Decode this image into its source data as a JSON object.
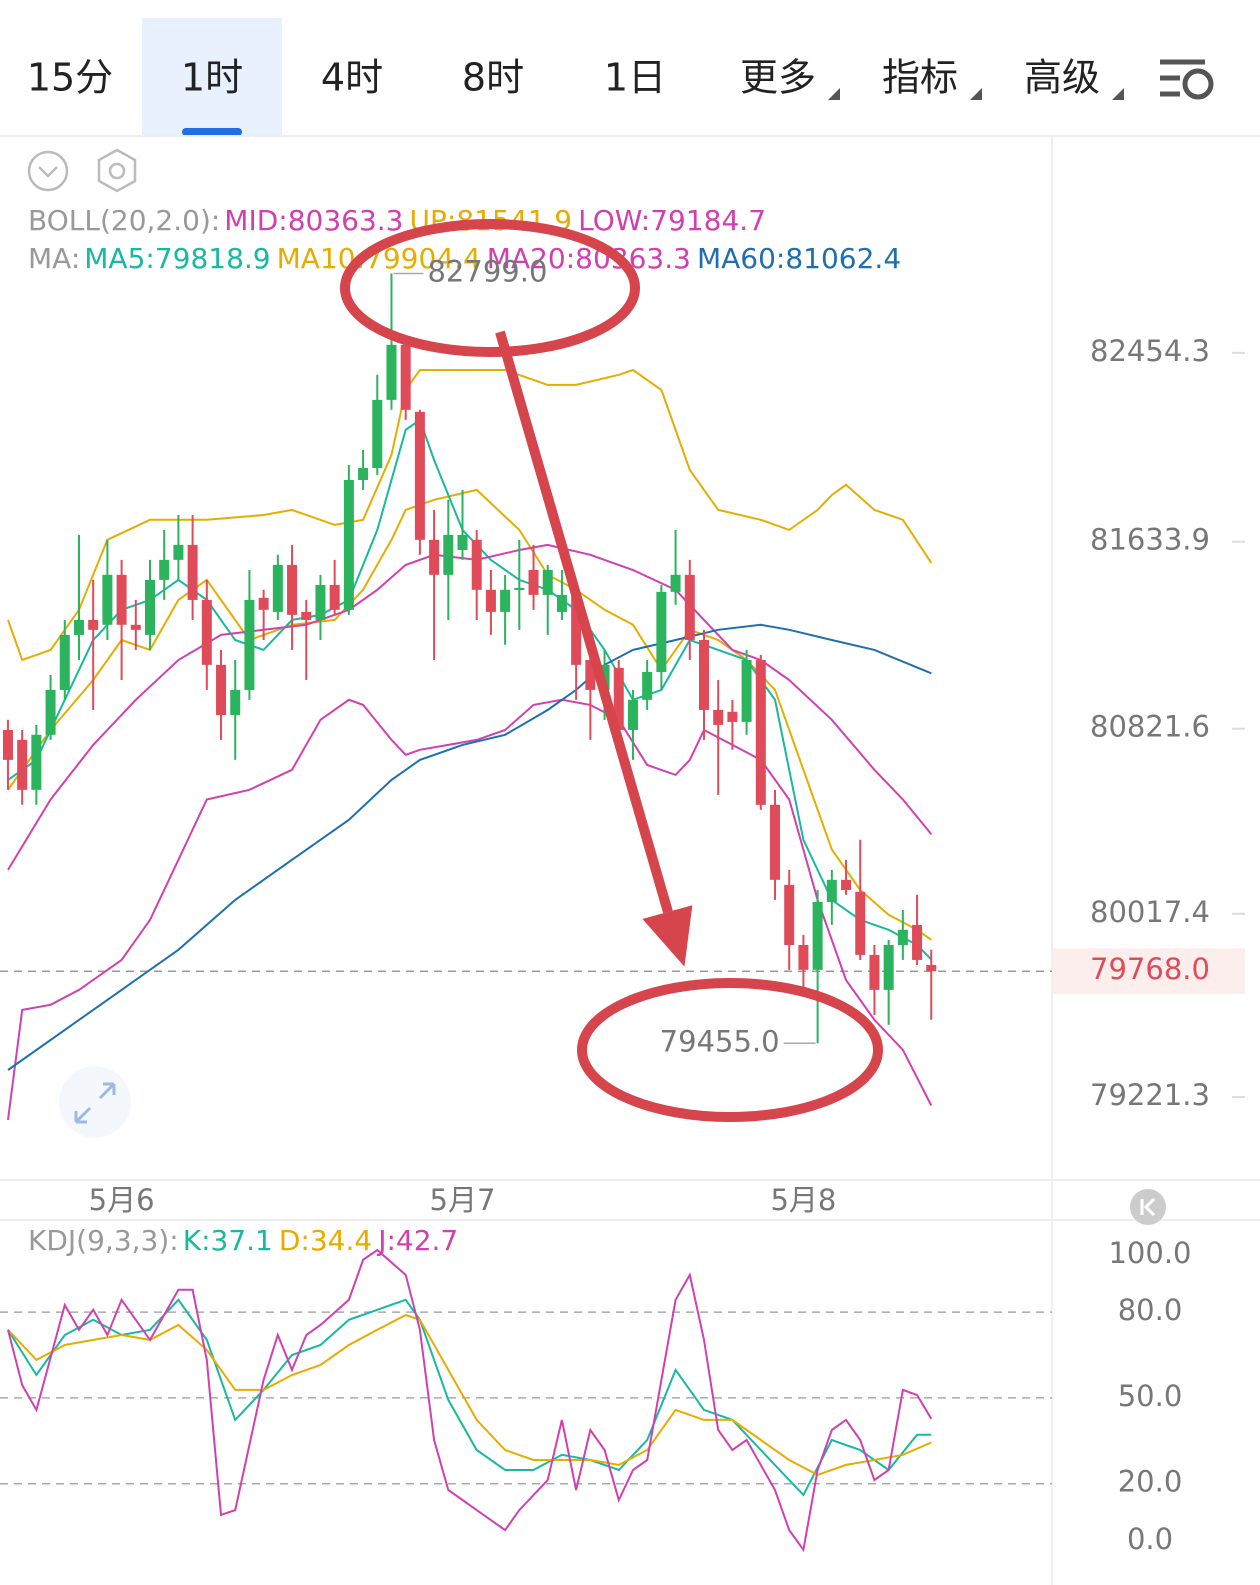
{
  "header": {
    "tabs": [
      "15分",
      "1时",
      "4时",
      "8时",
      "1日",
      "更多",
      "指标",
      "高级"
    ],
    "active_tab": "1时"
  },
  "chart_data": {
    "type": "candlestick",
    "legend_rows": [
      {
        "label": "BOLL(20,2.0):",
        "items": [
          {
            "text": "MID:80363.3",
            "color": "#d040b0"
          },
          {
            "text": "UP:81541.9",
            "color": "#e6ad00"
          },
          {
            "text": "LOW:79184.7",
            "color": "#d040b0"
          }
        ]
      },
      {
        "label": "MA:",
        "items": [
          {
            "text": "MA5:79818.9",
            "color": "#19b8a0"
          },
          {
            "text": "MA10:79904.4",
            "color": "#e6ad00"
          },
          {
            "text": "MA20:80363.3",
            "color": "#d040b0"
          },
          {
            "text": "MA60:81062.4",
            "color": "#1f6fb0"
          }
        ]
      }
    ],
    "categories": [
      null,
      null,
      null,
      null,
      null,
      null,
      null,
      null,
      "5月6",
      null,
      null,
      null,
      null,
      null,
      null,
      null,
      null,
      null,
      null,
      null,
      null,
      null,
      null,
      null,
      null,
      null,
      null,
      null,
      null,
      null,
      null,
      null,
      "5月7",
      null,
      null,
      null,
      null,
      null,
      null,
      null,
      null,
      null,
      null,
      null,
      null,
      null,
      null,
      null,
      null,
      null,
      null,
      null,
      null,
      null,
      null,
      null,
      "5月8",
      null,
      null,
      null,
      null,
      null,
      null,
      null,
      null,
      null
    ],
    "open": [
      80816,
      80773,
      80556,
      80795,
      80990,
      81229,
      81294,
      81273,
      81490,
      81273,
      81229,
      81468,
      81555,
      81620,
      81381,
      81099,
      80881,
      80990,
      81390,
      81329,
      81533,
      81329,
      81294,
      81446,
      81338,
      81902,
      81954,
      82250,
      82489,
      82198,
      81642,
      81490,
      81598,
      81642,
      81425,
      81329,
      81425,
      81511,
      81403,
      81329,
      81403,
      81120,
      80990,
      81086,
      80816,
      80947,
      81068,
      81416,
      81490,
      81207,
      80903,
      80895,
      80851,
      81120,
      80491,
      80143,
      79882,
      79774,
      80069,
      80165,
      80113,
      79839,
      79687,
      79882,
      79969,
      79795
    ],
    "high": [
      80860,
      80816,
      80838,
      81055,
      81294,
      81663,
      81468,
      81642,
      81555,
      81381,
      81555,
      81685,
      81750,
      81750,
      81468,
      81164,
      81120,
      81511,
      81425,
      81577,
      81620,
      81381,
      81490,
      81555,
      81967,
      82033,
      82359,
      82799,
      82511,
      82207,
      81772,
      81816,
      81859,
      81685,
      81511,
      81490,
      81642,
      81620,
      81533,
      81511,
      81425,
      81251,
      81164,
      81120,
      80990,
      81120,
      81446,
      81685,
      81555,
      81251,
      81033,
      80947,
      81164,
      81142,
      80556,
      80208,
      79926,
      80121,
      80208,
      80252,
      80339,
      79882,
      79904,
      80034,
      80100,
      79861
    ],
    "low": [
      80556,
      80491,
      80491,
      80773,
      80947,
      81120,
      80903,
      81207,
      81033,
      81164,
      81164,
      81381,
      81468,
      81294,
      80990,
      80773,
      80686,
      80947,
      81207,
      81294,
      81164,
      81033,
      81207,
      81316,
      81316,
      81859,
      81924,
      82207,
      82163,
      81577,
      81120,
      81294,
      81555,
      81294,
      81229,
      81186,
      81251,
      81338,
      81229,
      81294,
      80947,
      80773,
      80860,
      80773,
      80686,
      80903,
      80990,
      81360,
      81120,
      80773,
      80534,
      80730,
      80795,
      80469,
      80078,
      79774,
      79687,
      79455,
      79969,
      80100,
      79817,
      79578,
      79535,
      79817,
      79795,
      79557
    ],
    "close": [
      80686,
      80556,
      80795,
      80990,
      81229,
      81294,
      81251,
      81490,
      81273,
      81251,
      81468,
      81555,
      81620,
      81381,
      81099,
      80881,
      80990,
      81381,
      81338,
      81533,
      81316,
      81294,
      81446,
      81338,
      81902,
      81954,
      82250,
      82489,
      82207,
      81642,
      81490,
      81663,
      81663,
      81425,
      81329,
      81425,
      81433,
      81403,
      81511,
      81403,
      81099,
      80990,
      81099,
      80816,
      80947,
      81068,
      81416,
      81490,
      81207,
      80903,
      80838,
      80851,
      81120,
      80491,
      80165,
      79882,
      79774,
      80069,
      80165,
      80121,
      79839,
      79687,
      79882,
      79948,
      79817,
      79768
    ],
    "up_color": "#2bb35e",
    "down_color": "#e04b5a",
    "overlays": [
      {
        "color": "#e6ad00",
        "x": [
          0,
          1,
          3,
          5,
          7,
          10,
          14,
          18,
          20,
          23,
          25,
          27,
          28,
          29,
          33,
          35,
          38,
          40,
          43,
          44,
          46,
          48,
          50,
          53,
          55,
          57,
          58,
          59,
          61,
          63,
          65
        ],
        "values": [
          81294,
          81120,
          81164,
          81338,
          81642,
          81729,
          81729,
          81750,
          81772,
          81707,
          81729,
          82011,
          82293,
          82380,
          82380,
          82380,
          82315,
          82315,
          82359,
          82380,
          82293,
          81946,
          81772,
          81729,
          81685,
          81772,
          81837,
          81881,
          81772,
          81729,
          81541.9
        ]
      },
      {
        "color": "#e6ad00",
        "x": [
          0,
          3,
          6,
          8,
          10,
          12,
          14,
          17,
          20,
          23,
          25,
          27,
          28,
          30,
          33,
          36,
          38,
          40,
          42,
          44,
          46,
          48,
          50,
          52,
          54,
          56,
          58,
          60,
          62,
          64,
          65
        ],
        "values": [
          80556,
          80816,
          81033,
          81207,
          81164,
          81381,
          81468,
          81207,
          81273,
          81294,
          81425,
          81642,
          81772,
          81816,
          81859,
          81685,
          81490,
          81425,
          81338,
          81273,
          81077,
          81251,
          81207,
          81120,
          80990,
          80643,
          80297,
          80121,
          80013,
          79948,
          79904.4
        ]
      },
      {
        "color": "#19b8a0",
        "x": [
          0,
          2,
          4,
          6,
          8,
          10,
          12,
          14,
          16,
          18,
          20,
          22,
          24,
          26,
          28,
          29,
          30,
          32,
          34,
          36,
          38,
          40,
          42,
          44,
          46,
          48,
          50,
          52,
          54,
          56,
          58,
          60,
          62,
          64,
          65
        ],
        "values": [
          80599,
          80686,
          80947,
          81207,
          81338,
          81381,
          81468,
          81381,
          81207,
          81164,
          81294,
          81316,
          81381,
          81685,
          82120,
          82163,
          81989,
          81685,
          81555,
          81468,
          81425,
          81338,
          81164,
          80947,
          80990,
          81207,
          81164,
          81120,
          80947,
          80339,
          80078,
          79991,
          79948,
          79882,
          79818.9
        ]
      },
      {
        "color": "#d040b0",
        "x": [
          0,
          3,
          6,
          9,
          12,
          15,
          18,
          21,
          24,
          26,
          28,
          30,
          33,
          36,
          38,
          41,
          44,
          47,
          49,
          51,
          53,
          55,
          58,
          61,
          63,
          65
        ],
        "values": [
          80208,
          80514,
          80751,
          80947,
          81120,
          81229,
          81251,
          81273,
          81338,
          81425,
          81533,
          81577,
          81555,
          81598,
          81620,
          81577,
          81511,
          81425,
          81294,
          81164,
          81120,
          81033,
          80860,
          80643,
          80514,
          80363.3
        ]
      },
      {
        "color": "#d040b0",
        "x": [
          0,
          1,
          3,
          5,
          8,
          10,
          12,
          14,
          17,
          20,
          22,
          24,
          25,
          27,
          28,
          29,
          31,
          33,
          35,
          37,
          39,
          41,
          43,
          45,
          47,
          48,
          49,
          51,
          53,
          55,
          57,
          59,
          61,
          63,
          65
        ],
        "values": [
          79122,
          79600,
          79622,
          79687,
          79817,
          79991,
          80252,
          80514,
          80556,
          80643,
          80860,
          80947,
          80925,
          80773,
          80708,
          80730,
          80751,
          80773,
          80816,
          80925,
          80947,
          80925,
          80860,
          80664,
          80621,
          80686,
          80816,
          80751,
          80686,
          80514,
          80078,
          79730,
          79557,
          79426,
          79184.7
        ]
      },
      {
        "color": "#1f6fb0",
        "x": [
          0,
          4,
          8,
          12,
          16,
          20,
          24,
          27,
          29,
          32,
          35,
          38,
          40,
          42,
          44,
          47,
          50,
          53,
          55,
          58,
          61,
          65
        ],
        "values": [
          79339,
          79513,
          79687,
          79861,
          80078,
          80252,
          80426,
          80599,
          80686,
          80751,
          80795,
          80903,
          80990,
          81099,
          81164,
          81207,
          81251,
          81273,
          81251,
          81207,
          81164,
          81062.4
        ]
      }
    ],
    "annotations": [
      {
        "value": 82799,
        "label": "82799.0"
      },
      {
        "value": 79455,
        "label": "79455.0"
      }
    ],
    "last_price": {
      "value": 79768,
      "label": "79768.0"
    },
    "xlim": [
      -0.56,
      73.5
    ],
    "ylim": [
      78861,
      83379
    ],
    "yticks": [
      82454.3,
      81633.9,
      80821.6,
      80017.4,
      79221.3
    ]
  },
  "kdj": {
    "type": "line",
    "label": "KDJ(9,3,3):",
    "series": [
      {
        "name": "K:37.1",
        "color": "#19b8a0",
        "x": [
          0,
          2,
          4,
          6,
          8,
          10,
          12,
          14,
          16,
          18,
          20,
          22,
          24,
          26,
          28,
          29,
          31,
          33,
          35,
          37,
          39,
          41,
          43,
          45,
          47,
          49,
          51,
          53,
          55,
          56,
          58,
          60,
          62,
          64,
          65
        ],
        "values": [
          73.8,
          58,
          72,
          77.3,
          72,
          73.8,
          84.3,
          70.3,
          42.3,
          52.8,
          65,
          68.5,
          77.3,
          80.8,
          84.3,
          77.3,
          49.3,
          31.8,
          24.8,
          24.8,
          30.1,
          28.3,
          24.8,
          35.3,
          59.8,
          45.8,
          42.3,
          31.8,
          21.3,
          16.1,
          35.3,
          31.8,
          24.8,
          37.1,
          37.1
        ]
      },
      {
        "name": "D:34.4",
        "color": "#e6ad00",
        "x": [
          0,
          2,
          4,
          6,
          8,
          10,
          12,
          14,
          16,
          18,
          20,
          22,
          24,
          26,
          28,
          29,
          31,
          33,
          35,
          37,
          39,
          41,
          43,
          45,
          47,
          49,
          51,
          53,
          55,
          57,
          59,
          61,
          63,
          65
        ],
        "values": [
          73.8,
          63.3,
          68.5,
          70.3,
          72,
          70.3,
          75.5,
          66.8,
          52.8,
          52.8,
          58,
          61.5,
          68.5,
          73.8,
          79,
          77.3,
          59.8,
          42.3,
          31.8,
          28.3,
          28.3,
          28.3,
          26.6,
          31.8,
          45.8,
          42.3,
          42.3,
          35.3,
          28.3,
          23.1,
          26.6,
          28.3,
          30.1,
          34.4
        ]
      },
      {
        "name": "J:42.7",
        "color": "#d040b0",
        "x": [
          0,
          1,
          2,
          4,
          5,
          6,
          7,
          8,
          10,
          12,
          13,
          14,
          15,
          16,
          18,
          19,
          20,
          21,
          22,
          24,
          25,
          26,
          28,
          29,
          30,
          31,
          33,
          35,
          36,
          38,
          39,
          40,
          41,
          42,
          43,
          44,
          45,
          46,
          47,
          48,
          49,
          50,
          51,
          52,
          54,
          55,
          56,
          57,
          58,
          59,
          60,
          61,
          62,
          63,
          64,
          65
        ],
        "values": [
          73.8,
          54.5,
          45.8,
          82.5,
          73.8,
          80.8,
          72,
          84.3,
          70.3,
          87.8,
          87.8,
          63.3,
          9.1,
          10.8,
          56.3,
          72,
          59.8,
          72,
          75.5,
          84.3,
          98.3,
          101.7,
          93,
          73.8,
          35.3,
          17.8,
          10.8,
          3.8,
          10.8,
          21.3,
          42.3,
          17.8,
          38.8,
          31.8,
          14.3,
          24.8,
          28.3,
          56.3,
          84.3,
          93,
          70.3,
          38.8,
          31.8,
          35.3,
          17.8,
          3.8,
          -3.1,
          24.8,
          38.8,
          42.3,
          35.3,
          21.3,
          24.8,
          52.8,
          51,
          42.7
        ]
      }
    ],
    "xlim": [
      -0.56,
      73.5
    ],
    "ylim": [
      -15.4,
      112.2
    ],
    "yticks": [
      {
        "value": 100,
        "label": "100.0"
      },
      {
        "value": 80,
        "label": "80.0"
      },
      {
        "value": 50,
        "label": "50.0"
      },
      {
        "value": 20,
        "label": "20.0"
      },
      {
        "value": 0,
        "label": "0.0"
      }
    ]
  }
}
